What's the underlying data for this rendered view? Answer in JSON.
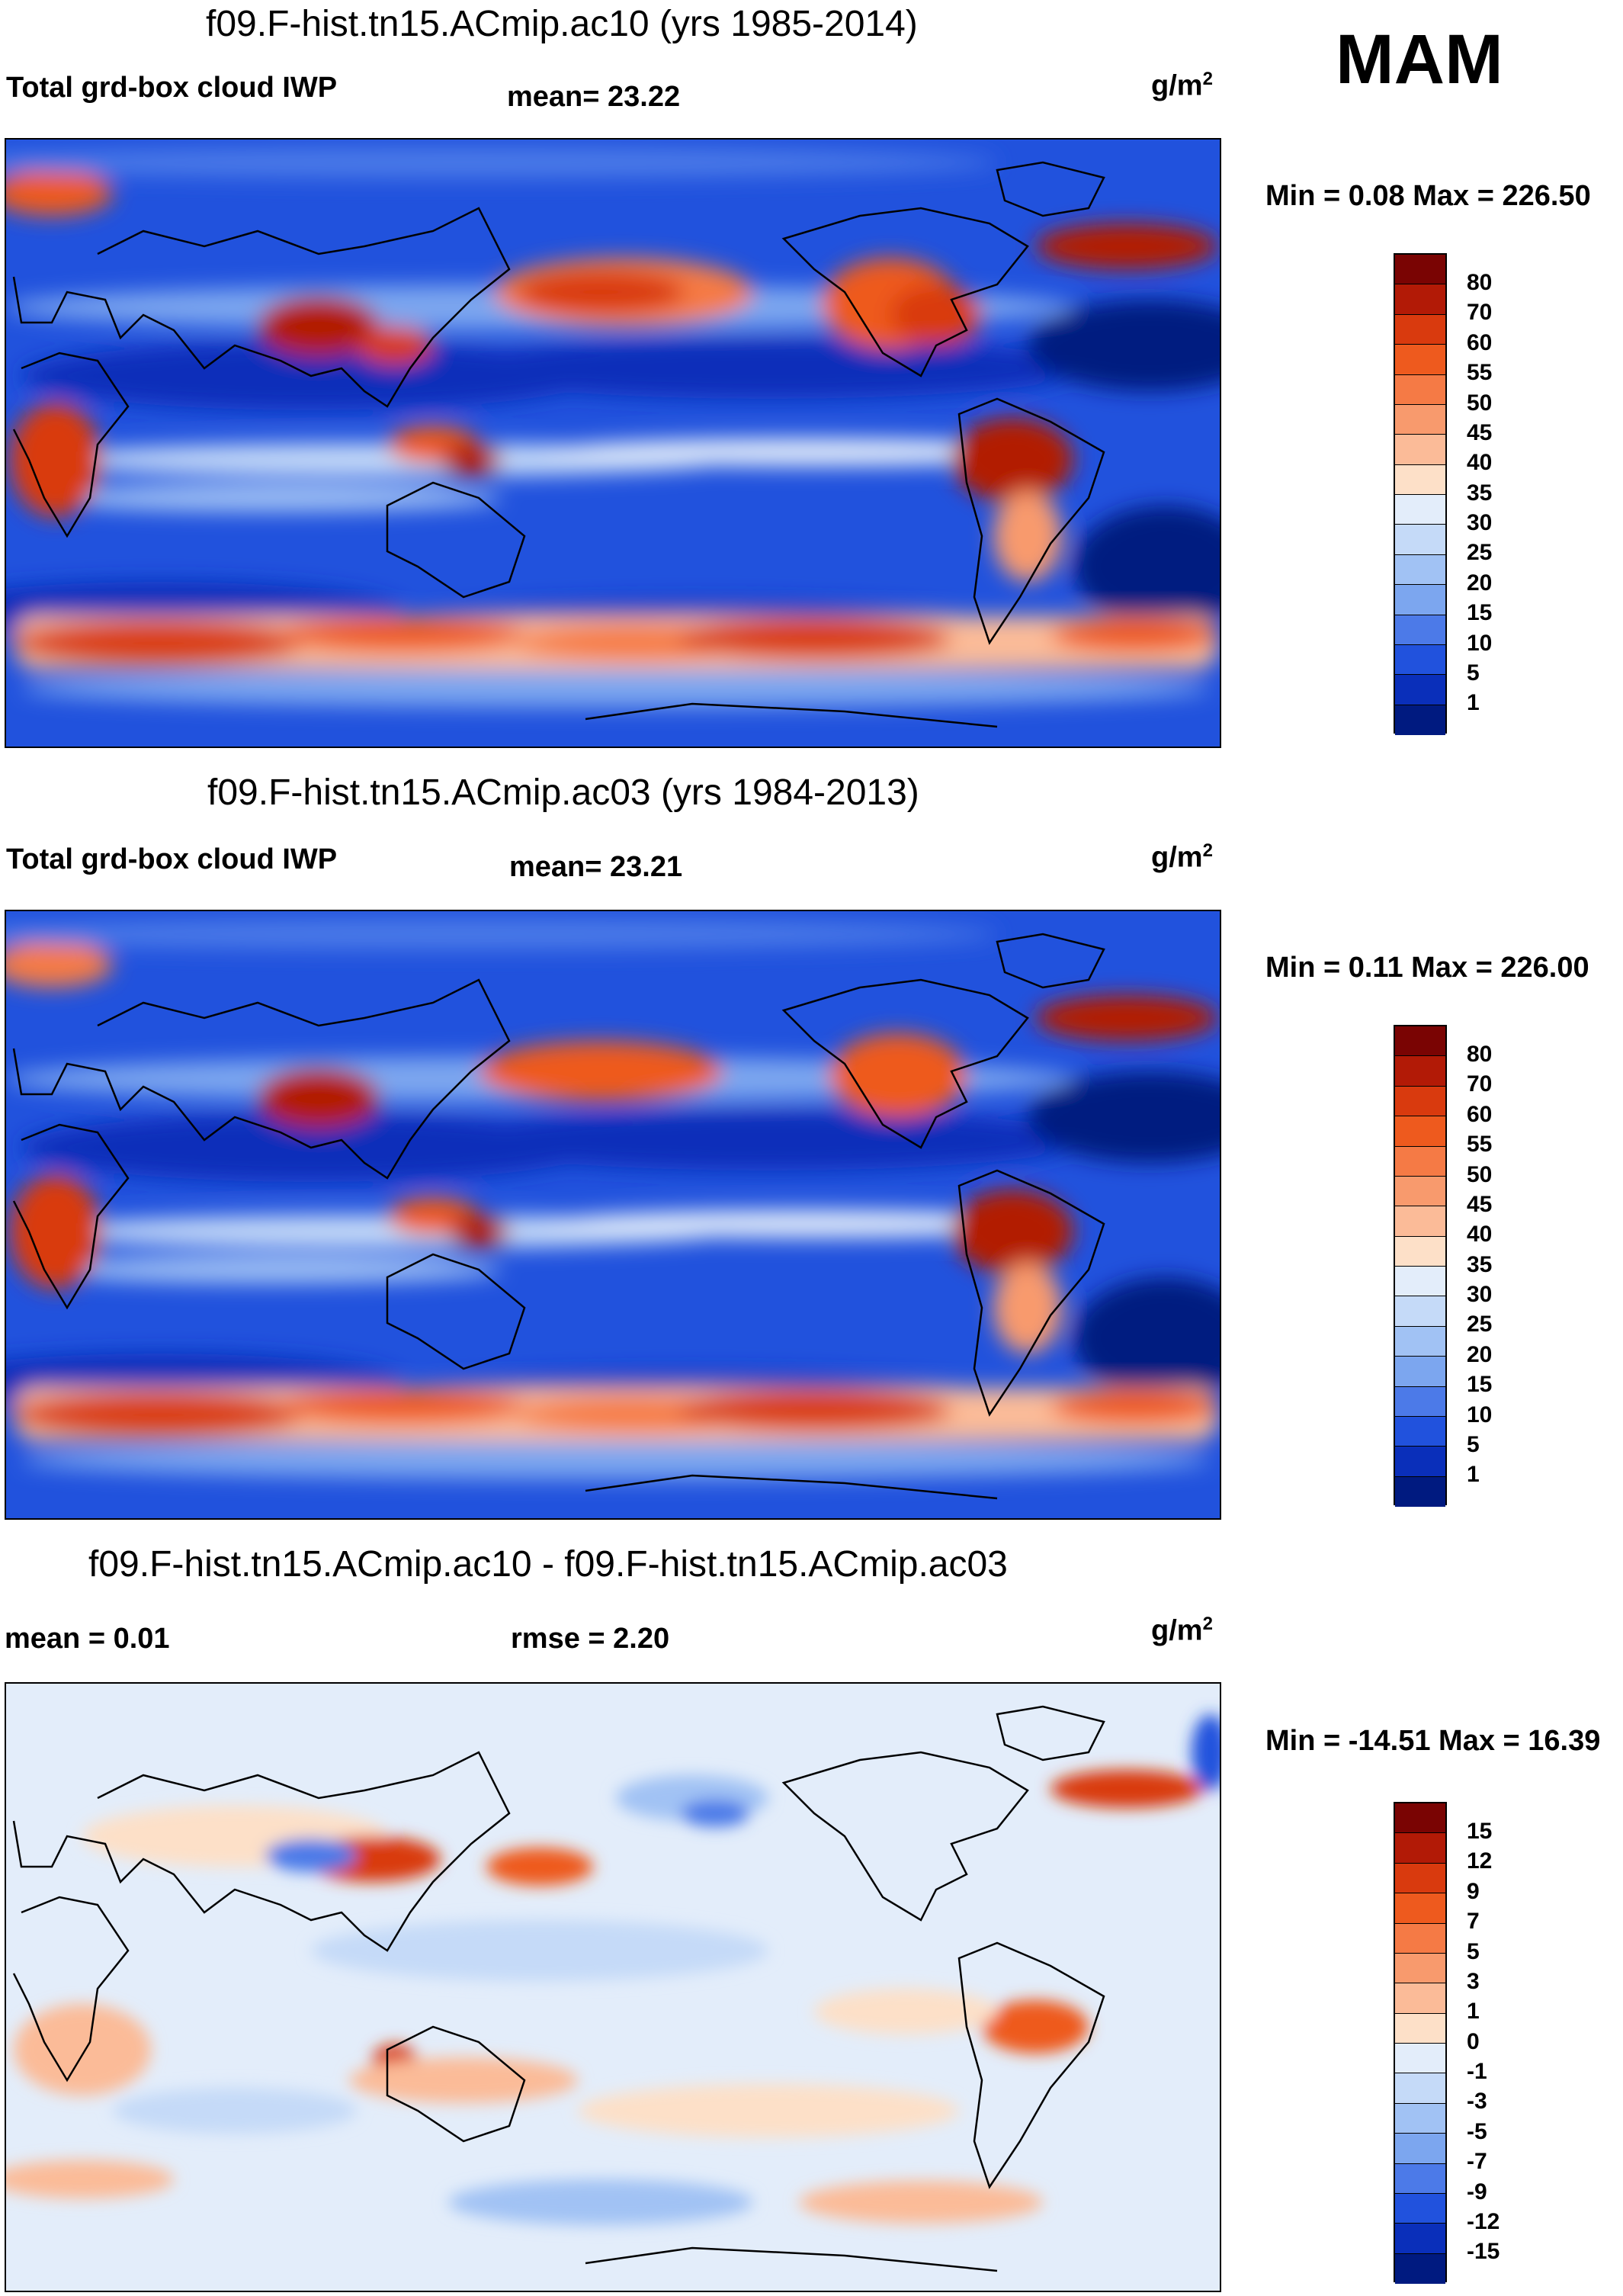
{
  "season": "MAM",
  "panels": [
    {
      "title": "f09.F-hist.tn15.ACmip.ac10 (yrs 1985-2014)",
      "left_label": "Total grd-box cloud IWP",
      "center_label": "mean=  23.22",
      "units_base": "g/m",
      "units_exp": "2",
      "minmax": "Min =   0.08 Max = 226.50",
      "field": "absolute"
    },
    {
      "title": "f09.F-hist.tn15.ACmip.ac03 (yrs 1984-2013)",
      "left_label": "Total grd-box cloud IWP",
      "center_label": "mean=  23.21",
      "units_base": "g/m",
      "units_exp": "2",
      "minmax": "Min =   0.11 Max = 226.00",
      "field": "absolute"
    },
    {
      "title": "f09.F-hist.tn15.ACmip.ac10 - f09.F-hist.tn15.ACmip.ac03",
      "left_label": "mean =   0.01",
      "center_label": "rmse =   2.20",
      "units_base": "g/m",
      "units_exp": "2",
      "minmax": "Min = -14.51 Max =  16.39",
      "field": "difference"
    }
  ],
  "colorbars": {
    "absolute": {
      "labels": [
        "80",
        "70",
        "60",
        "55",
        "50",
        "45",
        "40",
        "35",
        "30",
        "25",
        "20",
        "15",
        "10",
        "5",
        "1"
      ],
      "colors": [
        "#7a0403",
        "#b21a06",
        "#d93a0e",
        "#ee5a1e",
        "#f57a45",
        "#f89a6d",
        "#fbbb98",
        "#fde0c8",
        "#e3edfa",
        "#c5daf8",
        "#a1c2f4",
        "#7ca6ef",
        "#4c7ae8",
        "#2152dd",
        "#0a2fba",
        "#001a80"
      ]
    },
    "difference": {
      "labels": [
        "15",
        "12",
        "9",
        "7",
        "5",
        "3",
        "1",
        "0",
        "-1",
        "-3",
        "-5",
        "-7",
        "-9",
        "-12",
        "-15"
      ],
      "colors": [
        "#7a0403",
        "#b21a06",
        "#d93a0e",
        "#ee5a1e",
        "#f57a45",
        "#f89a6d",
        "#fbbb98",
        "#fde0c8",
        "#e3edfa",
        "#c5daf8",
        "#a1c2f4",
        "#7ca6ef",
        "#4c7ae8",
        "#2152dd",
        "#0a2fba",
        "#001a80"
      ]
    }
  }
}
